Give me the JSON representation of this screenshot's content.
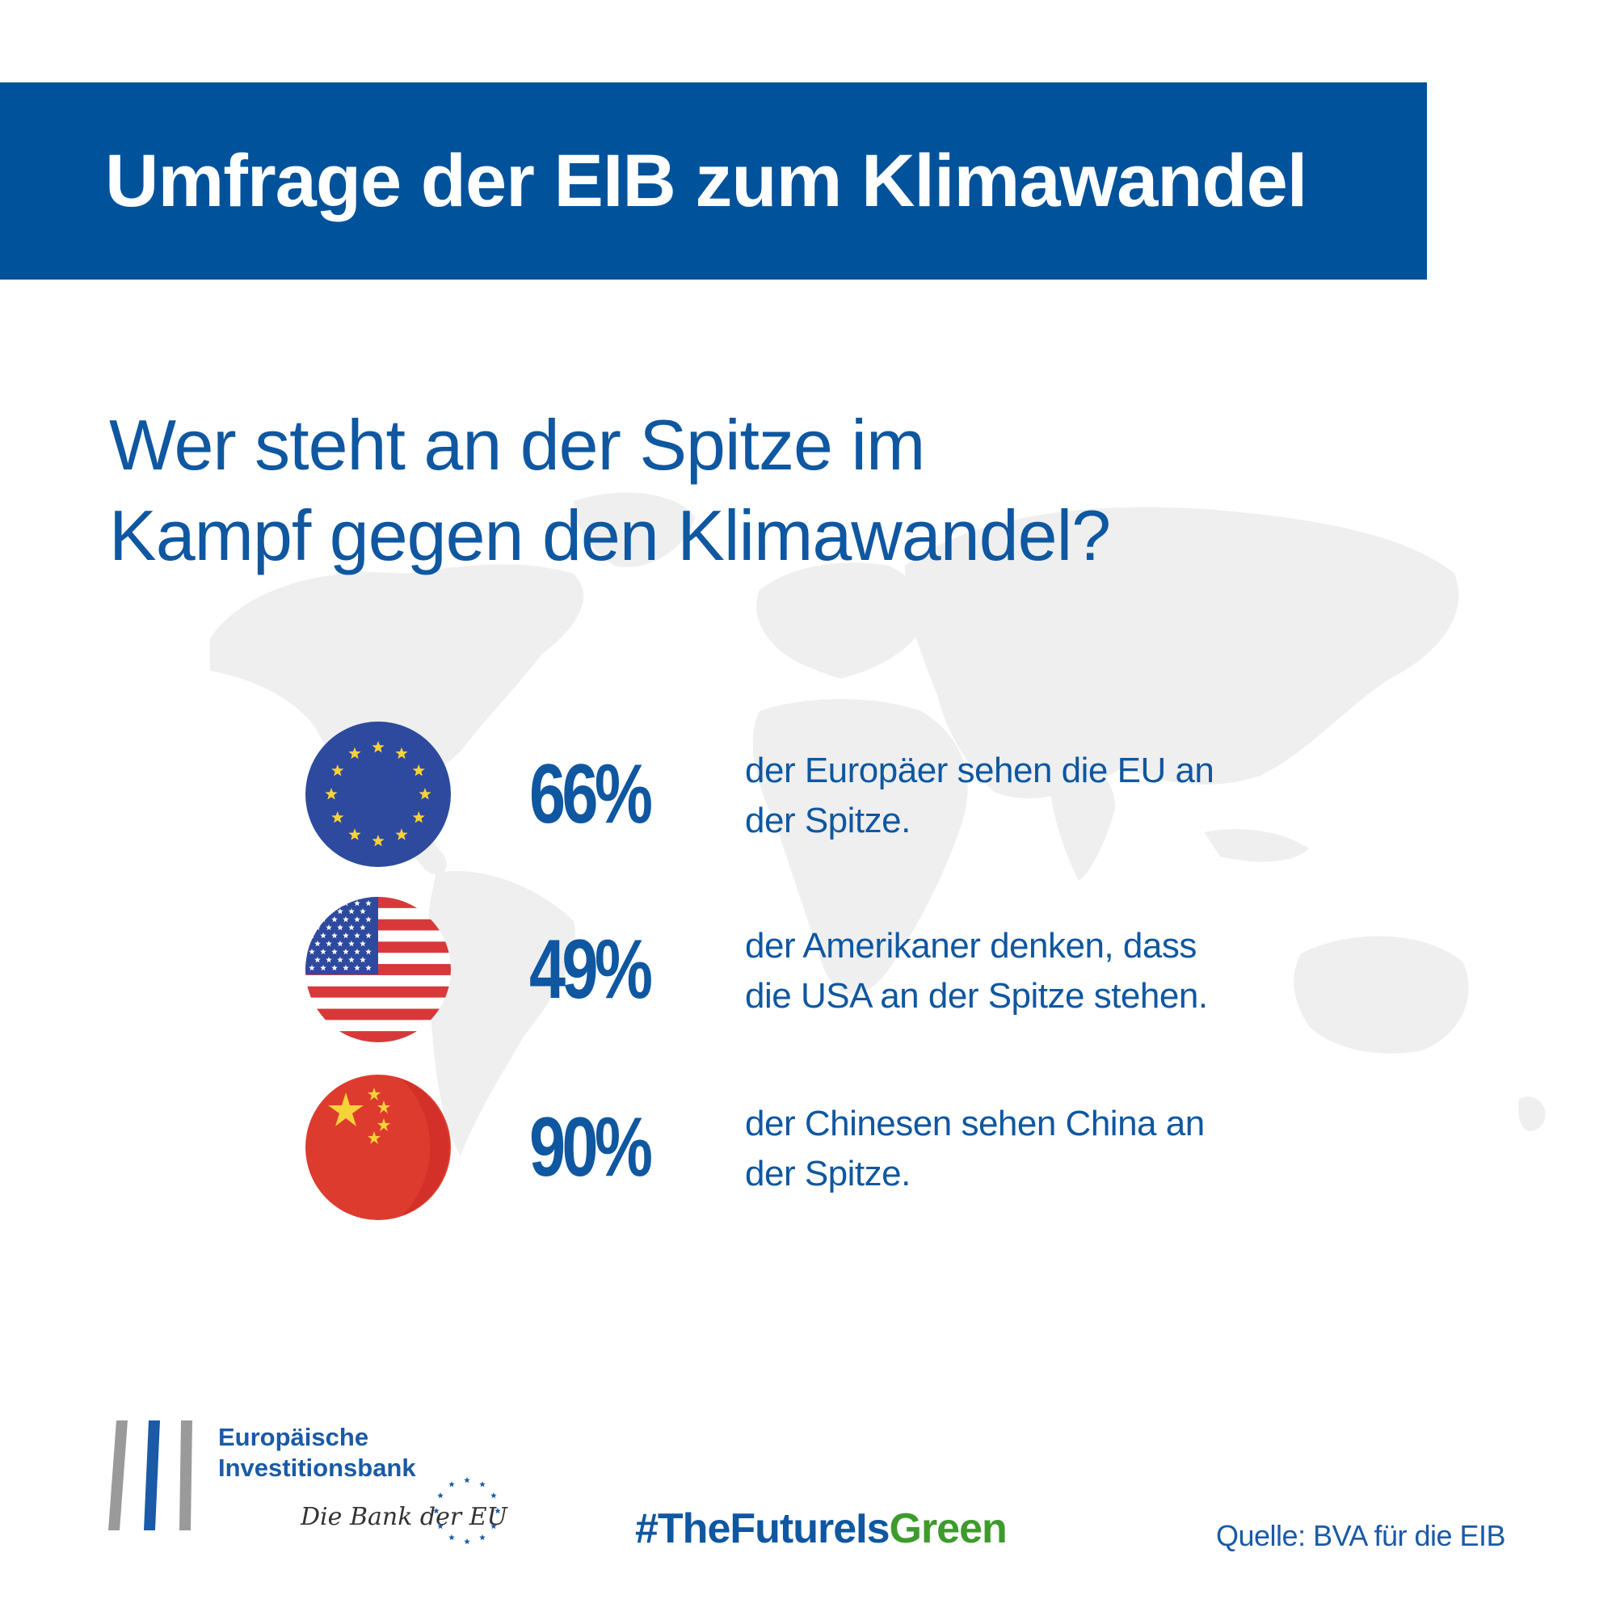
{
  "header": {
    "title": "Umfrage der EIB zum Klimawandel"
  },
  "question": {
    "line1": "Wer steht an der Spitze im",
    "line2": "Kampf gegen den Klimawandel?"
  },
  "stats": [
    {
      "flag": "eu-flag-icon",
      "percent": "66%",
      "line1": "der Europäer sehen die EU an",
      "line2": "der Spitze."
    },
    {
      "flag": "usa-flag-icon",
      "percent": "49%",
      "line1": "der Amerikaner denken, dass",
      "line2": "die USA an der Spitze stehen."
    },
    {
      "flag": "china-flag-icon",
      "percent": "90%",
      "line1": "der Chinesen sehen China an",
      "line2": "der Spitze."
    }
  ],
  "footer": {
    "logo_line1": "Europäische",
    "logo_line2": "Investitionsbank",
    "tagline": "Die Bank der EU",
    "hashtag_blue": "#TheFutureIs",
    "hashtag_green": "Green",
    "source": "Quelle: BVA für die EIB"
  },
  "colors": {
    "banner": "#00529b",
    "text_blue": "#0f57a0",
    "green": "#3e9a2c",
    "map_gray": "#efefef"
  }
}
